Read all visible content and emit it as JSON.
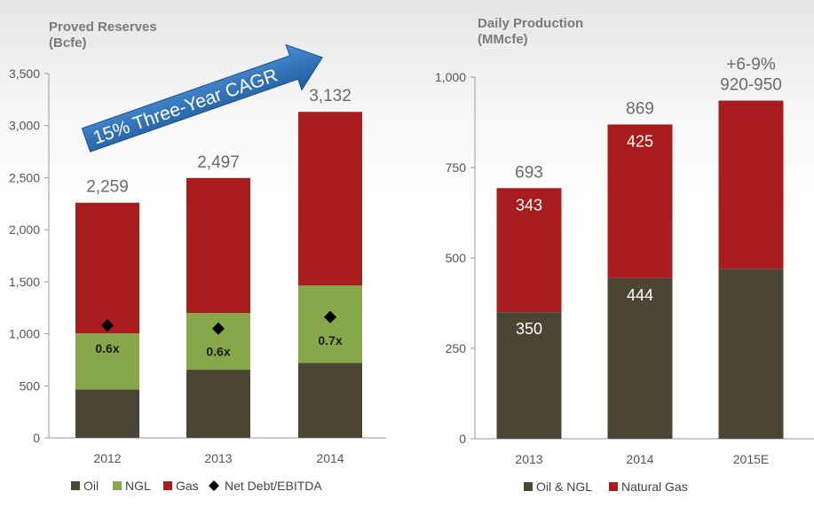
{
  "colors": {
    "oil": "#4a4633",
    "ngl": "#86a84a",
    "gas": "#a81c1d",
    "marker": "#000000",
    "arrow": "#2e6fb4",
    "axis": "#9a9a9a"
  },
  "chart_data": [
    {
      "type": "bar",
      "stacked": true,
      "title": "Proved Reserves",
      "subtitle": "(Bcfe)",
      "categories": [
        "2012",
        "2013",
        "2014"
      ],
      "series": [
        {
          "name": "Oil",
          "values": [
            465,
            655,
            720
          ]
        },
        {
          "name": "NGL",
          "values": [
            540,
            545,
            745
          ]
        },
        {
          "name": "Gas",
          "values": [
            1254,
            1297,
            1667
          ]
        }
      ],
      "totals": [
        "2,259",
        "2,497",
        "3,132"
      ],
      "ylim": [
        0,
        3500
      ],
      "yticks": [
        "0",
        "500",
        "1,000",
        "1,500",
        "2,000",
        "2,500",
        "3,000",
        "3,500"
      ],
      "overlay": {
        "name": "Net Debt/EBITDA",
        "marker_y": [
          1080,
          1050,
          1160
        ],
        "labels": [
          "0.6x",
          "0.6x",
          "0.7x"
        ]
      },
      "annotation": "15% Three-Year CAGR",
      "legend": [
        "Oil",
        "NGL",
        "Gas",
        "Net Debt/EBITDA"
      ],
      "legend_position": "bottom"
    },
    {
      "type": "bar",
      "stacked": true,
      "title": "Daily Production",
      "subtitle": "(MMcfe)",
      "categories": [
        "2013",
        "2014",
        "2015E"
      ],
      "series": [
        {
          "name": "Oil & NGL",
          "values": [
            350,
            444,
            470
          ],
          "labels": [
            "350",
            "444",
            ""
          ]
        },
        {
          "name": "Natural Gas",
          "values": [
            343,
            425,
            465
          ],
          "labels": [
            "343",
            "425",
            ""
          ]
        }
      ],
      "totals": [
        "693",
        "869",
        "920-950"
      ],
      "growth_label": "+6-9%",
      "ylim": [
        0,
        1000
      ],
      "yticks": [
        "0",
        "250",
        "500",
        "750",
        "1,000"
      ],
      "legend": [
        "Oil & NGL",
        "Natural Gas"
      ],
      "legend_position": "bottom"
    }
  ]
}
